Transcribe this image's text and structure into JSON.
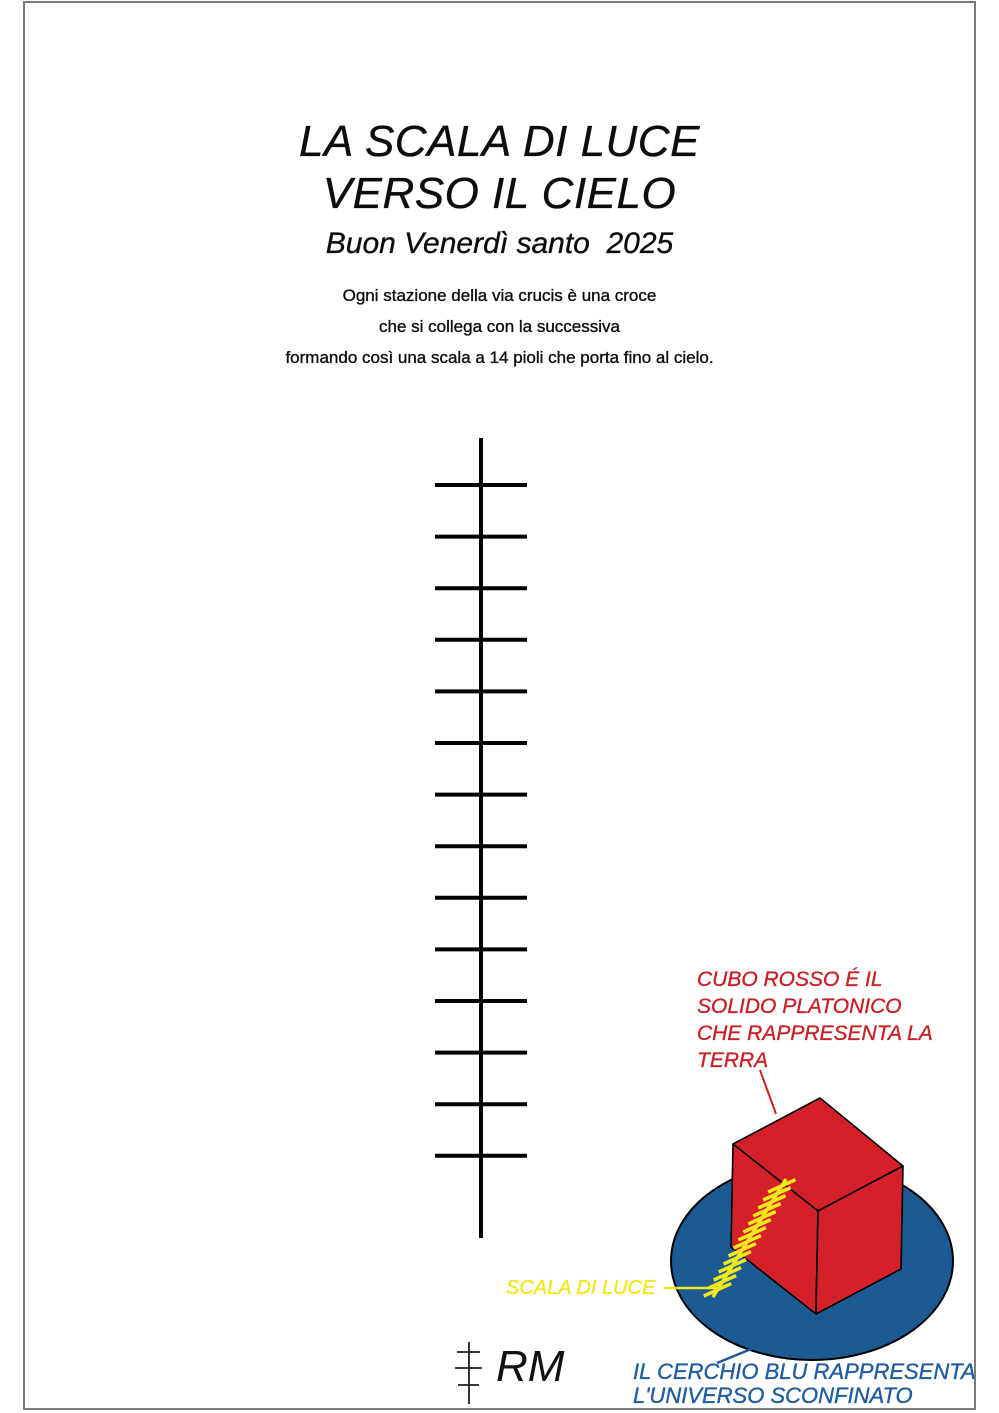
{
  "header": {
    "title_line1": "LA SCALA DI LUCE",
    "title_line2": "VERSO IL CIELO",
    "subtitle": "Buon Venerdì santo  2025"
  },
  "intro": {
    "lines": [
      "Ogni stazione della via crucis è una croce",
      "che si collega con la successiva",
      "formando così una scala a 14 pioli che porta fino al cielo."
    ]
  },
  "ladder": {
    "description": "scala a 14 pioli",
    "rungs": 14
  },
  "mini_ladder": {
    "rungs": 14
  },
  "annotations": {
    "cube": {
      "lines": [
        "CUBO ROSSO É IL",
        "SOLIDO PLATONICO",
        "CHE RAPPRESENTA LA",
        "TERRA"
      ]
    },
    "scala": {
      "text": "SCALA DI LUCE"
    },
    "universe": {
      "lines": [
        "IL CERCHIO BLU RAPPRESENTA",
        "L'UNIVERSO SCONFINATO"
      ]
    }
  },
  "signature": "RM",
  "colors": {
    "ink": "#000000",
    "red_text": "#c82127",
    "cube_red": "#d42129",
    "ellipse_blue": "#1c5a94",
    "blue_text": "#205ca0",
    "yellow": "#f2e71c",
    "border_gray": "#7a7a7a"
  }
}
